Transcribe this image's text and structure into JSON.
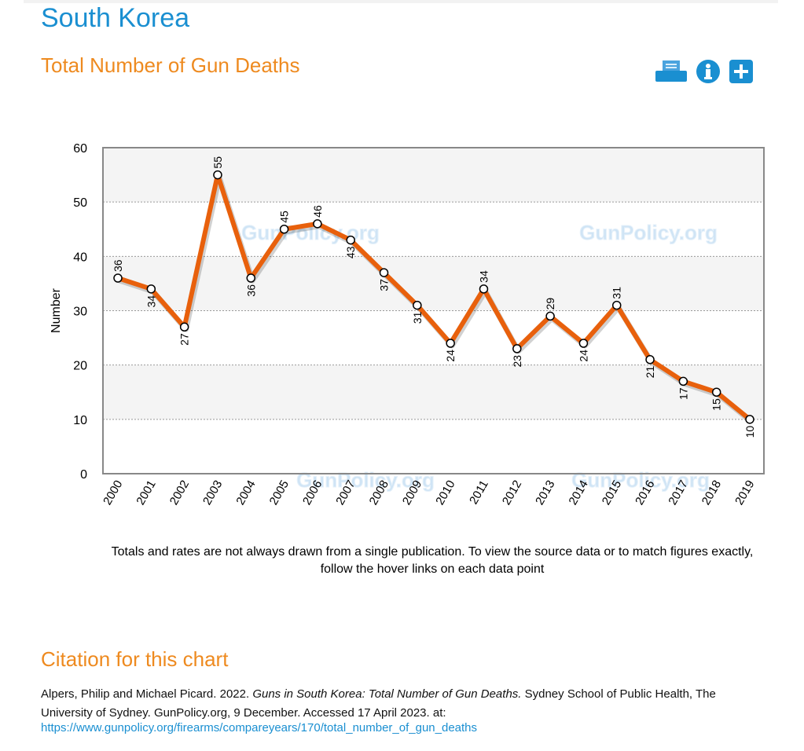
{
  "header": {
    "country": "South Korea",
    "chart_title": "Total Number of Gun Deaths"
  },
  "icons": [
    "printer-icon",
    "info-icon",
    "plus-icon"
  ],
  "colors": {
    "line": "#e8600c",
    "accent": "#1a8fd1",
    "heading": "#ee8a1f"
  },
  "chart_data": {
    "type": "line",
    "title": "Total Number of Gun Deaths",
    "xlabel": "",
    "ylabel": "Number",
    "x": [
      "2000",
      "2001",
      "2002",
      "2003",
      "2004",
      "2005",
      "2006",
      "2007",
      "2008",
      "2009",
      "2010",
      "2011",
      "2012",
      "2013",
      "2014",
      "2015",
      "2016",
      "2017",
      "2018",
      "2019"
    ],
    "values": [
      36,
      34,
      27,
      55,
      36,
      45,
      46,
      43,
      37,
      31,
      24,
      34,
      23,
      29,
      24,
      31,
      21,
      17,
      15,
      10
    ],
    "label_side": [
      "above",
      "below",
      "below",
      "above",
      "below",
      "above",
      "above",
      "below",
      "below",
      "below",
      "below",
      "above",
      "below",
      "above",
      "below",
      "above",
      "below",
      "below",
      "below",
      "below"
    ],
    "ylim": [
      0,
      60
    ],
    "yticks": [
      0,
      10,
      20,
      30,
      40,
      50,
      60
    ],
    "grid": true,
    "watermark": "GunPolicy.org"
  },
  "note": "Totals and rates are not always drawn from a single publication. To view the source data or to match figures exactly, follow the hover links on each data point",
  "citation": {
    "heading": "Citation for this chart",
    "authors": "Alpers, Philip and Michael Picard. 2022. ",
    "title": "Guns in South Korea: Total Number of Gun Deaths.",
    "rest": " Sydney School of Public Health, The University of Sydney. GunPolicy.org, 9 December. Accessed 17 April 2023. at:",
    "url": "https://www.gunpolicy.org/firearms/compareyears/170/total_number_of_gun_deaths"
  }
}
